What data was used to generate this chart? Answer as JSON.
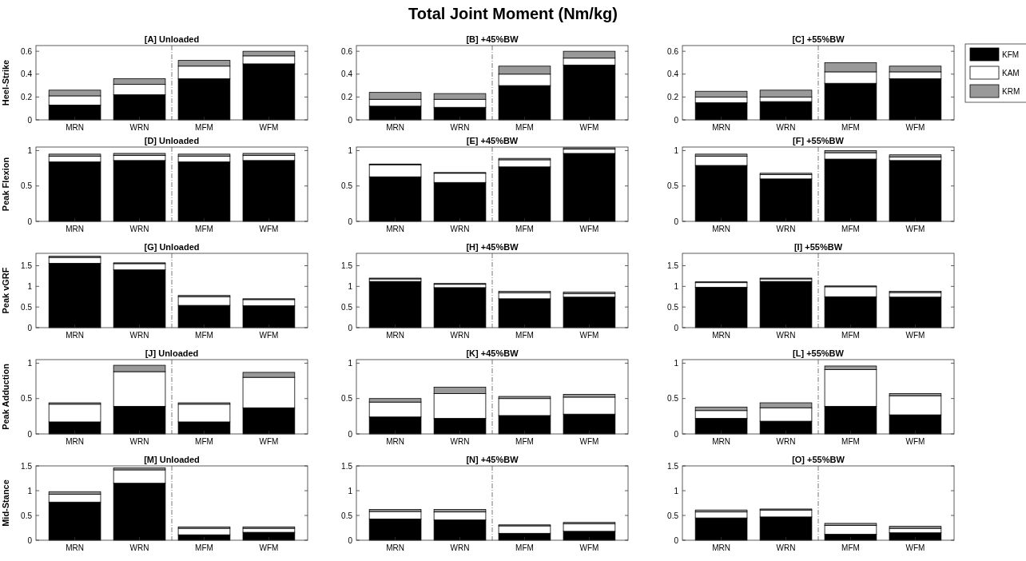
{
  "chart_data": [
    {
      "type": "bar",
      "title": "[A] Unloaded",
      "ylabel": "Heel-Strike",
      "annotations": [
        "Total Joint Moment (Nm/kg)"
      ],
      "categories": [
        "MRN",
        "WRN",
        "MFM",
        "WFM"
      ],
      "stacked": true,
      "ylim": [
        0,
        0.65
      ],
      "yticks": [
        0,
        0.2,
        0.4,
        0.6
      ],
      "series": [
        {
          "color": "#000000",
          "values": [
            0.13,
            0.22,
            0.36,
            0.49
          ]
        },
        {
          "color": "#ffffff",
          "values": [
            0.08,
            0.09,
            0.11,
            0.07
          ]
        },
        {
          "color": "#999999",
          "values": [
            0.05,
            0.05,
            0.05,
            0.04
          ]
        }
      ]
    },
    {
      "type": "bar",
      "title": "[B] +45%BW",
      "categories": [
        "MRN",
        "WRN",
        "MFM",
        "WFM"
      ],
      "stacked": true,
      "ylim": [
        0,
        0.65
      ],
      "yticks": [
        0,
        0.2,
        0.4,
        0.6
      ],
      "series": [
        {
          "color": "#000000",
          "values": [
            0.12,
            0.11,
            0.3,
            0.48
          ]
        },
        {
          "color": "#ffffff",
          "values": [
            0.06,
            0.07,
            0.1,
            0.06
          ]
        },
        {
          "color": "#999999",
          "values": [
            0.06,
            0.05,
            0.07,
            0.06
          ]
        }
      ]
    },
    {
      "type": "bar",
      "title": "[C] +55%BW",
      "categories": [
        "MRN",
        "WRN",
        "MFM",
        "WFM"
      ],
      "stacked": true,
      "ylim": [
        0,
        0.65
      ],
      "yticks": [
        0,
        0.2,
        0.4,
        0.6
      ],
      "legend": "right",
      "series": [
        {
          "name": "KFM",
          "color": "#000000",
          "values": [
            0.15,
            0.16,
            0.32,
            0.36
          ]
        },
        {
          "name": "KAM",
          "color": "#ffffff",
          "values": [
            0.05,
            0.04,
            0.1,
            0.06
          ]
        },
        {
          "name": "KRM",
          "color": "#999999",
          "values": [
            0.05,
            0.06,
            0.08,
            0.05
          ]
        }
      ]
    },
    {
      "type": "bar",
      "title": "[D] Unloaded",
      "ylabel": "Peak Flexion",
      "categories": [
        "MRN",
        "WRN",
        "MFM",
        "WFM"
      ],
      "stacked": true,
      "ylim": [
        0,
        1.05
      ],
      "yticks": [
        0,
        0.5,
        1
      ],
      "series": [
        {
          "color": "#000000",
          "values": [
            0.84,
            0.86,
            0.84,
            0.86
          ]
        },
        {
          "color": "#ffffff",
          "values": [
            0.08,
            0.07,
            0.08,
            0.07
          ]
        },
        {
          "color": "#999999",
          "values": [
            0.03,
            0.03,
            0.03,
            0.03
          ]
        }
      ]
    },
    {
      "type": "bar",
      "title": "[E] +45%BW",
      "categories": [
        "MRN",
        "WRN",
        "MFM",
        "WFM"
      ],
      "stacked": true,
      "ylim": [
        0,
        1.05
      ],
      "yticks": [
        0,
        0.5,
        1
      ],
      "series": [
        {
          "color": "#000000",
          "values": [
            0.63,
            0.55,
            0.77,
            0.96
          ]
        },
        {
          "color": "#ffffff",
          "values": [
            0.17,
            0.13,
            0.1,
            0.06
          ]
        },
        {
          "color": "#999999",
          "values": [
            0.01,
            0.01,
            0.02,
            0.02
          ]
        }
      ]
    },
    {
      "type": "bar",
      "title": "[F] +55%BW",
      "categories": [
        "MRN",
        "WRN",
        "MFM",
        "WFM"
      ],
      "stacked": true,
      "ylim": [
        0,
        1.05
      ],
      "yticks": [
        0,
        0.5,
        1
      ],
      "series": [
        {
          "color": "#000000",
          "values": [
            0.79,
            0.6,
            0.88,
            0.86
          ]
        },
        {
          "color": "#ffffff",
          "values": [
            0.13,
            0.06,
            0.09,
            0.05
          ]
        },
        {
          "color": "#999999",
          "values": [
            0.03,
            0.02,
            0.03,
            0.03
          ]
        }
      ]
    },
    {
      "type": "bar",
      "title": "[G] Unloaded",
      "ylabel": "Peak vGRF",
      "categories": [
        "MRN",
        "WRN",
        "MFM",
        "WFM"
      ],
      "stacked": true,
      "ylim": [
        0,
        1.8
      ],
      "yticks": [
        0,
        0.5,
        1,
        1.5
      ],
      "series": [
        {
          "color": "#000000",
          "values": [
            1.56,
            1.4,
            0.54,
            0.53
          ]
        },
        {
          "color": "#ffffff",
          "values": [
            0.14,
            0.15,
            0.21,
            0.15
          ]
        },
        {
          "color": "#999999",
          "values": [
            0.03,
            0.02,
            0.03,
            0.02
          ]
        }
      ]
    },
    {
      "type": "bar",
      "title": "[H] +45%BW",
      "categories": [
        "MRN",
        "WRN",
        "MFM",
        "WFM"
      ],
      "stacked": true,
      "ylim": [
        0,
        1.8
      ],
      "yticks": [
        0,
        0.5,
        1,
        1.5
      ],
      "series": [
        {
          "color": "#000000",
          "values": [
            1.12,
            0.97,
            0.7,
            0.74
          ]
        },
        {
          "color": "#ffffff",
          "values": [
            0.06,
            0.08,
            0.14,
            0.08
          ]
        },
        {
          "color": "#999999",
          "values": [
            0.02,
            0.02,
            0.04,
            0.04
          ]
        }
      ]
    },
    {
      "type": "bar",
      "title": "[I] +55%BW",
      "categories": [
        "MRN",
        "WRN",
        "MFM",
        "WFM"
      ],
      "stacked": true,
      "ylim": [
        0,
        1.8
      ],
      "yticks": [
        0,
        0.5,
        1,
        1.5
      ],
      "series": [
        {
          "color": "#000000",
          "values": [
            0.98,
            1.12,
            0.75,
            0.74
          ]
        },
        {
          "color": "#ffffff",
          "values": [
            0.11,
            0.06,
            0.24,
            0.11
          ]
        },
        {
          "color": "#999999",
          "values": [
            0.02,
            0.02,
            0.02,
            0.03
          ]
        }
      ]
    },
    {
      "type": "bar",
      "title": "[J] Unloaded",
      "ylabel": "Peak Adduction",
      "categories": [
        "MRN",
        "WRN",
        "MFM",
        "WFM"
      ],
      "stacked": true,
      "ylim": [
        0,
        1.05
      ],
      "yticks": [
        0,
        0.5,
        1
      ],
      "series": [
        {
          "color": "#000000",
          "values": [
            0.17,
            0.39,
            0.17,
            0.37
          ]
        },
        {
          "color": "#ffffff",
          "values": [
            0.25,
            0.49,
            0.25,
            0.43
          ]
        },
        {
          "color": "#999999",
          "values": [
            0.02,
            0.09,
            0.02,
            0.07
          ]
        }
      ]
    },
    {
      "type": "bar",
      "title": "[K] +45%BW",
      "categories": [
        "MRN",
        "WRN",
        "MFM",
        "WFM"
      ],
      "stacked": true,
      "ylim": [
        0,
        1.05
      ],
      "yticks": [
        0,
        0.5,
        1
      ],
      "series": [
        {
          "color": "#000000",
          "values": [
            0.24,
            0.22,
            0.26,
            0.28
          ]
        },
        {
          "color": "#ffffff",
          "values": [
            0.21,
            0.35,
            0.24,
            0.24
          ]
        },
        {
          "color": "#999999",
          "values": [
            0.05,
            0.09,
            0.03,
            0.04
          ]
        }
      ]
    },
    {
      "type": "bar",
      "title": "[L] +55%BW",
      "categories": [
        "MRN",
        "WRN",
        "MFM",
        "WFM"
      ],
      "stacked": true,
      "ylim": [
        0,
        1.05
      ],
      "yticks": [
        0,
        0.5,
        1
      ],
      "series": [
        {
          "color": "#000000",
          "values": [
            0.22,
            0.18,
            0.39,
            0.27
          ]
        },
        {
          "color": "#ffffff",
          "values": [
            0.11,
            0.19,
            0.52,
            0.27
          ]
        },
        {
          "color": "#999999",
          "values": [
            0.05,
            0.07,
            0.05,
            0.03
          ]
        }
      ]
    },
    {
      "type": "bar",
      "title": "[M] Unloaded",
      "ylabel": "Mid-Stance",
      "categories": [
        "MRN",
        "WRN",
        "MFM",
        "WFM"
      ],
      "stacked": true,
      "ylim": [
        0,
        1.5
      ],
      "yticks": [
        0,
        0.5,
        1,
        1.5
      ],
      "series": [
        {
          "color": "#000000",
          "values": [
            0.77,
            1.15,
            0.11,
            0.16
          ]
        },
        {
          "color": "#ffffff",
          "values": [
            0.16,
            0.27,
            0.13,
            0.08
          ]
        },
        {
          "color": "#999999",
          "values": [
            0.05,
            0.04,
            0.03,
            0.03
          ]
        }
      ]
    },
    {
      "type": "bar",
      "title": "[N] +45%BW",
      "categories": [
        "MRN",
        "WRN",
        "MFM",
        "WFM"
      ],
      "stacked": true,
      "ylim": [
        0,
        1.5
      ],
      "yticks": [
        0,
        0.5,
        1,
        1.5
      ],
      "series": [
        {
          "color": "#000000",
          "values": [
            0.43,
            0.41,
            0.14,
            0.18
          ]
        },
        {
          "color": "#ffffff",
          "values": [
            0.15,
            0.16,
            0.15,
            0.15
          ]
        },
        {
          "color": "#999999",
          "values": [
            0.04,
            0.05,
            0.02,
            0.03
          ]
        }
      ]
    },
    {
      "type": "bar",
      "title": "[O] +55%BW",
      "categories": [
        "MRN",
        "WRN",
        "MFM",
        "WFM"
      ],
      "stacked": true,
      "ylim": [
        0,
        1.5
      ],
      "yticks": [
        0,
        0.5,
        1,
        1.5
      ],
      "series": [
        {
          "color": "#000000",
          "values": [
            0.45,
            0.47,
            0.12,
            0.15
          ]
        },
        {
          "color": "#ffffff",
          "values": [
            0.12,
            0.14,
            0.18,
            0.09
          ]
        },
        {
          "color": "#999999",
          "values": [
            0.04,
            0.02,
            0.04,
            0.04
          ]
        }
      ]
    }
  ]
}
